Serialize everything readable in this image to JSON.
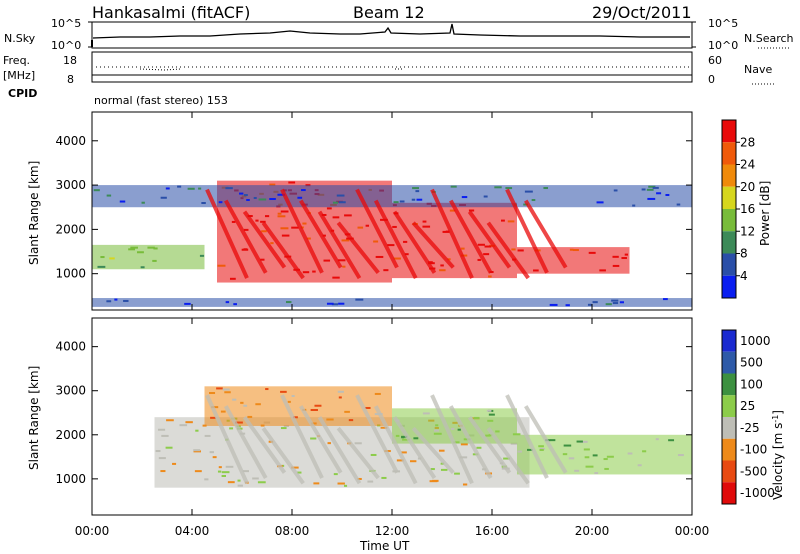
{
  "header": {
    "station": "Hankasalmi (fitACF)",
    "beam": "Beam 12",
    "date": "29/Oct/2011"
  },
  "noise_panel": {
    "left_label": "N.Sky",
    "left_ticks": [
      "10^5",
      "10^0"
    ],
    "right_label": "N.Search",
    "right_ticks": [
      "10^5",
      "10^0"
    ]
  },
  "freq_panel": {
    "left_label_1": "Freq.",
    "left_label_2": "[MHz]",
    "left_ticks": [
      "18",
      "8"
    ],
    "right_label": "Nave",
    "right_ticks": [
      "60",
      "0"
    ],
    "cpid_label": "CPID",
    "cpid_text": "normal (fast stereo) 153"
  },
  "colors": {
    "power_scale": [
      "#0a1ef0",
      "#2a4fa8",
      "#3c8a58",
      "#78bc3a",
      "#d6d61e",
      "#f08a0a",
      "#f05a0a",
      "#e80a0a"
    ],
    "velocity_scale": [
      "#1a2ad0",
      "#2e5aa8",
      "#3c9040",
      "#8ccc4a",
      "#bebeb6",
      "#ee8a1a",
      "#e84a12",
      "#e00a0a"
    ]
  },
  "chart_data": [
    {
      "type": "heatmap",
      "title": "Power",
      "xlabel": "Time UT",
      "ylabel": "Slant Range [km]",
      "x_ticks": [
        "00:00",
        "04:00",
        "08:00",
        "12:00",
        "16:00",
        "20:00",
        "00:00"
      ],
      "xlim_hours": [
        0,
        24
      ],
      "y_ticks": [
        1000,
        2000,
        3000,
        4000
      ],
      "ylim": [
        180,
        4650
      ],
      "colorbar": {
        "label": "Power [dB]",
        "ticks": [
          4,
          8,
          12,
          16,
          20,
          24,
          28
        ],
        "range": [
          0,
          32
        ]
      },
      "echo_regions": [
        {
          "t0": 0.0,
          "t1": 4.5,
          "r0": 1100,
          "r1": 1650,
          "level": "low-mid"
        },
        {
          "t0": 0.0,
          "t1": 24.0,
          "r0": 250,
          "r1": 450,
          "level": "low"
        },
        {
          "t0": 5.0,
          "t1": 12.0,
          "r0": 800,
          "r1": 3100,
          "level": "high"
        },
        {
          "t0": 12.0,
          "t1": 17.0,
          "r0": 900,
          "r1": 2600,
          "level": "high"
        },
        {
          "t0": 17.0,
          "t1": 21.5,
          "r0": 1000,
          "r1": 1600,
          "level": "high"
        },
        {
          "t0": 0.0,
          "t1": 24.0,
          "r0": 2500,
          "r1": 3000,
          "level": "low"
        }
      ]
    },
    {
      "type": "heatmap",
      "title": "Velocity",
      "xlabel": "Time UT",
      "ylabel": "Slant Range [km]",
      "x_ticks": [
        "00:00",
        "04:00",
        "08:00",
        "12:00",
        "16:00",
        "20:00",
        "00:00"
      ],
      "xlim_hours": [
        0,
        24
      ],
      "y_ticks": [
        1000,
        2000,
        3000,
        4000
      ],
      "ylim": [
        180,
        4650
      ],
      "colorbar": {
        "label": "Velocity [m s^-1]",
        "ticks": [
          1000,
          500,
          100,
          25,
          -25,
          -100,
          -500,
          -1000
        ]
      },
      "echo_regions": [
        {
          "t0": 2.5,
          "t1": 17.5,
          "r0": 800,
          "r1": 2400,
          "level": "ground-scatter"
        },
        {
          "t0": 17.0,
          "t1": 24.0,
          "r0": 1100,
          "r1": 2000,
          "level": "mixed"
        },
        {
          "t0": 4.5,
          "t1": 12.0,
          "r0": 2200,
          "r1": 3100,
          "level": "negative"
        },
        {
          "t0": 12.0,
          "t1": 17.0,
          "r0": 1800,
          "r1": 2600,
          "level": "positive"
        }
      ]
    }
  ]
}
